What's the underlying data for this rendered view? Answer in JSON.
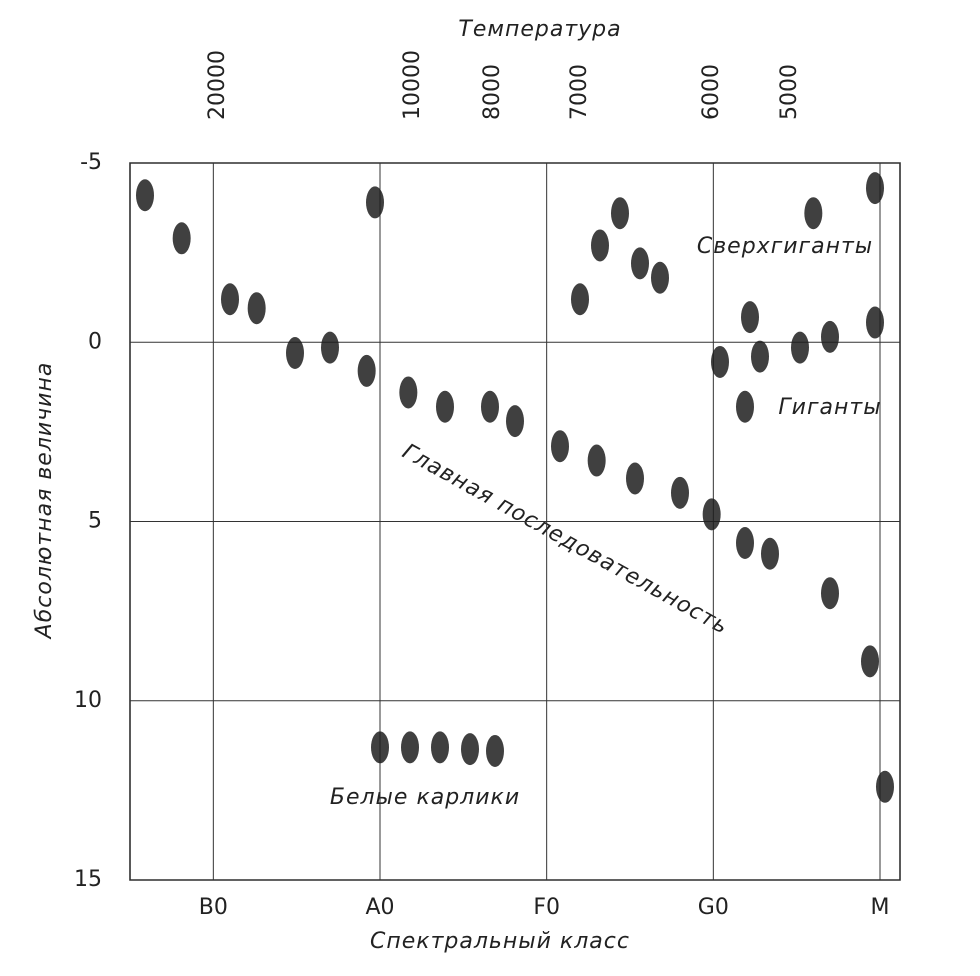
{
  "chart_data": {
    "type": "scatter",
    "title": "Температура",
    "x_label": "Спектральный класс",
    "y_label": "Абсолютная величина",
    "xlim": [
      -0.5,
      4.12
    ],
    "ylim": [
      -5,
      15
    ],
    "y_inverted": true,
    "xticks": [
      {
        "value": 0,
        "label": "B0"
      },
      {
        "value": 1,
        "label": "A0"
      },
      {
        "value": 2,
        "label": "F0"
      },
      {
        "value": 3,
        "label": "G0"
      },
      {
        "value": 4,
        "label": "M"
      }
    ],
    "yticks": [
      -5,
      0,
      5,
      10,
      15
    ],
    "x2ticks": [
      20000,
      10000,
      8000,
      7000,
      6000,
      5000
    ],
    "grid": true,
    "annotations": [
      "Сверхгиганты",
      "Гиганты",
      "Главная последовательность",
      "Белые карлики"
    ],
    "series": [
      {
        "color": "#1e1e1e",
        "x": [
          -0.19,
          0.1,
          0.26,
          0.49,
          0.7,
          0.92,
          1.17,
          1.39,
          1.66,
          1.81,
          2.08,
          2.3,
          2.53,
          2.8,
          2.99,
          3.19,
          3.34,
          3.7,
          3.94,
          4.03,
          3.04,
          3.28,
          3.52,
          3.7,
          3.97,
          3.19,
          3.22,
          1.0,
          1.18,
          1.36,
          1.54,
          1.69,
          2.32,
          2.56,
          2.44,
          3.6,
          3.97,
          2.68,
          2.2,
          -0.41,
          0.97
        ],
        "values": [
          -2.9,
          -1.2,
          -0.95,
          0.3,
          0.15,
          0.8,
          1.4,
          1.8,
          1.8,
          2.2,
          2.9,
          3.3,
          3.8,
          4.2,
          4.8,
          5.6,
          5.9,
          7.0,
          8.9,
          12.4,
          0.55,
          0.4,
          0.15,
          -0.15,
          -0.55,
          1.8,
          -0.7,
          11.3,
          11.3,
          11.3,
          11.35,
          11.4,
          -2.7,
          -2.2,
          -3.6,
          -3.6,
          -4.3,
          -1.8,
          -1.2,
          -4.1,
          -3.9
        ]
      }
    ]
  }
}
